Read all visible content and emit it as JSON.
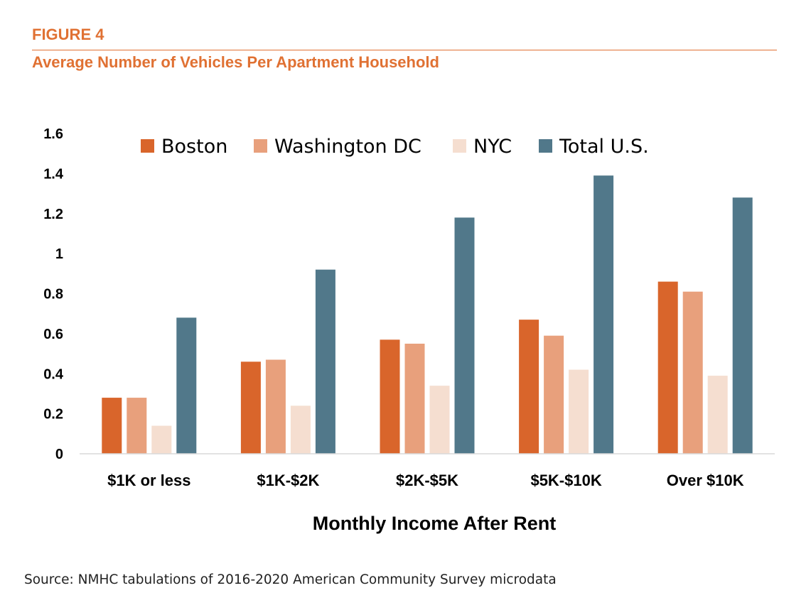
{
  "figure_label": "FIGURE 4",
  "figure_title": "Average Number of Vehicles Per Apartment Household",
  "source": "Source: NMHC tabulations of 2016-2020 American Community Survey microdata",
  "colors": {
    "accent": "#e07133",
    "boston": "#d9652b",
    "washington_dc": "#e8a07c",
    "nyc": "#f5ded0",
    "total_us": "#51788a",
    "axis": "#d9d9d9",
    "text": "#000000"
  },
  "chart_data": {
    "type": "bar",
    "title": "",
    "xlabel": "Monthly Income After Rent",
    "ylabel": "",
    "categories": [
      "$1K or less",
      "$1K-$2K",
      "$2K-$5K",
      "$5K-$10K",
      "Over $10K"
    ],
    "series": [
      {
        "name": "Boston",
        "values": [
          0.28,
          0.46,
          0.57,
          0.67,
          0.86
        ]
      },
      {
        "name": "Washington DC",
        "values": [
          0.28,
          0.47,
          0.55,
          0.59,
          0.81
        ]
      },
      {
        "name": "NYC",
        "values": [
          0.14,
          0.24,
          0.34,
          0.42,
          0.39
        ]
      },
      {
        "name": "Total U.S.",
        "values": [
          0.68,
          0.92,
          1.18,
          1.39,
          1.28
        ]
      }
    ],
    "ylim": [
      0,
      1.6
    ],
    "yticks": [
      "0",
      "0.2",
      "0.4",
      "0.6",
      "0.8",
      "1",
      "1.2",
      "1.4",
      "1.6"
    ],
    "grid": false,
    "legend": "top"
  }
}
